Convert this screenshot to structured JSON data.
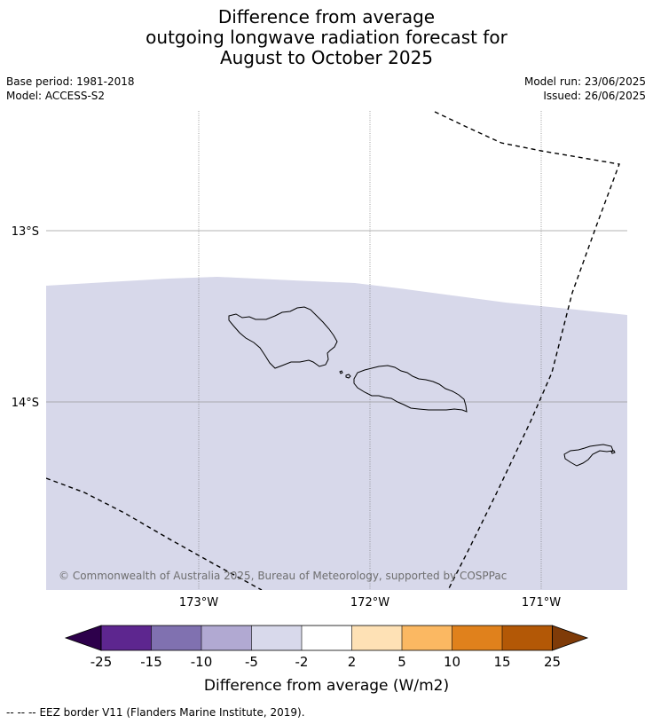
{
  "title": {
    "line1": "Difference from average",
    "line2": "outgoing longwave radiation forecast for",
    "line3": "August to October 2025"
  },
  "meta": {
    "base_period": "Base period: 1981-2018",
    "model": "Model: ACCESS-S2",
    "model_run": "Model run: 23/06/2025",
    "issued": "Issued: 26/06/2025"
  },
  "map": {
    "lat_labels": [
      "13°S",
      "14°S"
    ],
    "lon_labels": [
      "173°W",
      "172°W",
      "171°W"
    ],
    "credit": "© Commonwealth of Australia 2025, Bureau of Meteorology, supported by COSPPac",
    "fill_color": "#d7d8ea"
  },
  "colorbar": {
    "title": "Difference from average (W/m2)",
    "ticks": [
      "-25",
      "-15",
      "-10",
      "-5",
      "-2",
      "2",
      "5",
      "10",
      "15",
      "25"
    ],
    "under_color": "#2d004b",
    "over_color": "#7f3b08",
    "colors": [
      "#5d268f",
      "#8071b0",
      "#b1a9d2",
      "#d8d9eb",
      "#ffffff",
      "#fee1b5",
      "#fbb862",
      "#e0811c",
      "#b35806"
    ]
  },
  "footer": {
    "legend_symbol": "-- -- --",
    "legend_text": "EEZ border V11 (Flanders Marine Institute, 2019)."
  }
}
